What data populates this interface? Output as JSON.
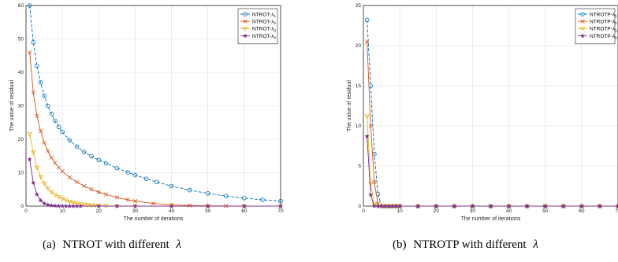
{
  "colors": {
    "lambda1": "#0072BD",
    "lambda2": "#D95319",
    "lambda3": "#EDB120",
    "lambda4": "#7E2F8E"
  },
  "captions": [
    {
      "prefix": "(a)",
      "text": "NTROT with different",
      "symbol": "λ"
    },
    {
      "prefix": "(b)",
      "text": "NTROTP with different",
      "symbol": "λ"
    }
  ],
  "chart_data": [
    {
      "type": "line",
      "xlabel": "The number of iterations",
      "ylabel": "The value of residual",
      "xlim": [
        0,
        70
      ],
      "ylim": [
        0,
        60
      ],
      "xticks": [
        "0",
        "10",
        "20",
        "30",
        "40",
        "50",
        "60",
        "70"
      ],
      "yticks": [
        "0",
        "10",
        "20",
        "30",
        "40",
        "50",
        "60"
      ],
      "grid": true,
      "legend_position": "top-right",
      "series": [
        {
          "name": "NTROT-λ",
          "subscript": "1",
          "color": "#0072BD",
          "marker": "circle",
          "dashed": true,
          "x": [
            1,
            2,
            3,
            4,
            5,
            6,
            7,
            8,
            9,
            10,
            12,
            14,
            16,
            18,
            20,
            22,
            25,
            28,
            30,
            33,
            36,
            40,
            45,
            50,
            55,
            60,
            65,
            70
          ],
          "y": [
            60,
            49,
            42,
            37,
            33,
            30,
            27.6,
            25.5,
            23.7,
            22.2,
            19.7,
            17.8,
            16.2,
            14.9,
            13.8,
            12.8,
            11.4,
            10.1,
            9.3,
            8.2,
            7.2,
            6,
            4.8,
            3.8,
            3,
            2.4,
            1.9,
            1.5
          ]
        },
        {
          "name": "NTROT-λ",
          "subscript": "2",
          "color": "#D95319",
          "marker": "x",
          "dashed": false,
          "x": [
            1,
            2,
            3,
            4,
            5,
            6,
            7,
            8,
            9,
            10,
            12,
            14,
            16,
            18,
            20,
            22,
            25,
            28,
            30,
            35,
            40,
            45,
            50,
            55,
            60,
            70
          ],
          "y": [
            46,
            34,
            27,
            22.5,
            19,
            16.5,
            14.5,
            12.9,
            11.5,
            10.4,
            8.6,
            7.2,
            6,
            5,
            4.2,
            3.5,
            2.6,
            1.9,
            1.5,
            0.8,
            0.4,
            0.2,
            0.1,
            0.05,
            0.02,
            0
          ]
        },
        {
          "name": "NTROT-λ",
          "subscript": "3",
          "color": "#EDB120",
          "marker": "triangle-down",
          "dashed": false,
          "x": [
            1,
            2,
            3,
            4,
            5,
            6,
            7,
            8,
            9,
            10,
            11,
            12,
            13,
            14,
            15,
            16,
            17,
            18,
            19,
            20,
            22,
            25,
            30,
            40,
            50,
            60,
            70
          ],
          "y": [
            21.5,
            16,
            11.5,
            8.8,
            6.8,
            5.3,
            4.2,
            3.4,
            2.7,
            2.2,
            1.7,
            1.3,
            1,
            0.8,
            0.6,
            0.45,
            0.35,
            0.25,
            0.2,
            0.15,
            0.08,
            0.04,
            0.01,
            0,
            0,
            0,
            0
          ]
        },
        {
          "name": "NTROT-λ",
          "subscript": "4",
          "color": "#7E2F8E",
          "marker": "star",
          "dashed": false,
          "x": [
            1,
            2,
            3,
            4,
            5,
            6,
            7,
            8,
            9,
            10,
            11,
            12,
            13,
            14,
            15,
            20,
            25,
            30,
            40,
            50,
            60,
            70
          ],
          "y": [
            14,
            7,
            3.5,
            1.7,
            0.8,
            0.4,
            0.2,
            0.1,
            0.05,
            0.02,
            0.01,
            0,
            0,
            0,
            0,
            0,
            0,
            0,
            0,
            0,
            0,
            0
          ]
        }
      ]
    },
    {
      "type": "line",
      "xlabel": "The number of iterations",
      "ylabel": "The value of residual",
      "xlim": [
        0,
        70
      ],
      "ylim": [
        0,
        25
      ],
      "xticks": [
        "0",
        "10",
        "20",
        "30",
        "40",
        "50",
        "60",
        "70"
      ],
      "yticks": [
        "0",
        "5",
        "10",
        "15",
        "20",
        "25"
      ],
      "grid": true,
      "legend_position": "top-right",
      "series": [
        {
          "name": "NTROTP-λ",
          "subscript": "1",
          "color": "#0072BD",
          "marker": "circle",
          "dashed": true,
          "x": [
            1,
            2,
            3,
            4,
            5,
            6,
            7,
            8,
            9,
            10,
            15,
            20,
            25,
            30,
            35,
            40,
            45,
            50,
            55,
            60,
            65,
            70
          ],
          "y": [
            23.2,
            15,
            6.5,
            1.5,
            0,
            0,
            0,
            0,
            0,
            0,
            0,
            0,
            0,
            0,
            0,
            0,
            0,
            0,
            0,
            0,
            0,
            0
          ]
        },
        {
          "name": "NTROTP-λ",
          "subscript": "2",
          "color": "#D95319",
          "marker": "x",
          "dashed": false,
          "x": [
            1,
            2,
            3,
            4,
            5,
            6,
            7,
            8,
            9,
            10,
            15,
            20,
            25,
            30,
            35,
            40,
            45,
            50,
            55,
            60,
            65,
            70
          ],
          "y": [
            20.5,
            10,
            3,
            0.3,
            0,
            0,
            0,
            0,
            0,
            0,
            0,
            0,
            0,
            0,
            0,
            0,
            0,
            0,
            0,
            0,
            0,
            0
          ]
        },
        {
          "name": "NTROTP-λ",
          "subscript": "3",
          "color": "#EDB120",
          "marker": "triangle-down",
          "dashed": false,
          "x": [
            1,
            2,
            3,
            4,
            5,
            6,
            7,
            8,
            9,
            10,
            15,
            20,
            25,
            30,
            35,
            40,
            45,
            50,
            55,
            60,
            65,
            70
          ],
          "y": [
            11.2,
            2.8,
            0.2,
            0,
            0,
            0,
            0,
            0,
            0,
            0,
            0,
            0,
            0,
            0,
            0,
            0,
            0,
            0,
            0,
            0,
            0,
            0
          ]
        },
        {
          "name": "NTROTP-λ",
          "subscript": "4",
          "color": "#7E2F8E",
          "marker": "star",
          "dashed": false,
          "x": [
            1,
            2,
            3,
            4,
            5,
            6,
            7,
            8,
            9,
            10,
            15,
            20,
            25,
            30,
            35,
            40,
            45,
            50,
            55,
            60,
            65,
            70
          ],
          "y": [
            8.7,
            1.4,
            0,
            0,
            0,
            0,
            0,
            0,
            0,
            0,
            0,
            0,
            0,
            0,
            0,
            0,
            0,
            0,
            0,
            0,
            0,
            0
          ]
        }
      ]
    }
  ]
}
